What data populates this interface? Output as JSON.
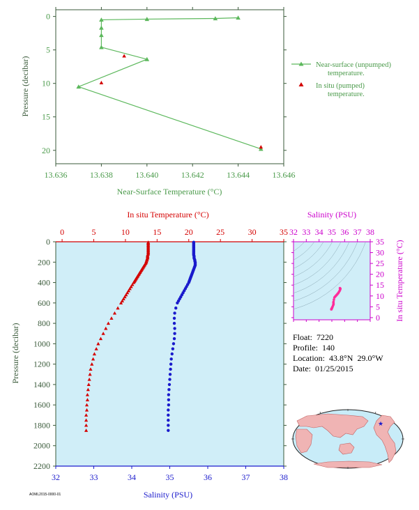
{
  "info": {
    "float": "Float:  7220",
    "profile": "Profile:  140",
    "location": "Location:  43.8°N  29.0°W",
    "date": "Date:  01/25/2015"
  },
  "footer_id": "AOML2015-0000-01",
  "chart_data": [
    {
      "type": "line",
      "title": "",
      "xlabel": "Near-Surface Temperature (°C)",
      "ylabel": "Pressure (decibar)",
      "xlim": [
        13.636,
        13.646
      ],
      "ylim": [
        22,
        -1
      ],
      "xticks": [
        "13.636",
        "13.638",
        "13.640",
        "13.642",
        "13.644",
        "13.646"
      ],
      "yticks": [
        "0",
        "5",
        "10",
        "15",
        "20"
      ],
      "color": "#5cb85c",
      "insitu_color": "#d40000",
      "legend_position": "right",
      "series": [
        {
          "name": "Near-surface (unpumped) temperature.",
          "x": [
            13.644,
            13.643,
            13.64,
            13.638,
            13.638,
            13.638,
            13.638,
            13.64,
            13.637,
            13.645
          ],
          "y": [
            0.2,
            0.3,
            0.4,
            0.5,
            1.7,
            2.8,
            4.6,
            6.4,
            10.5,
            19.8
          ]
        },
        {
          "name": "In situ (pumped) temperature.",
          "x": [
            13.639,
            13.638,
            13.645
          ],
          "y": [
            5.9,
            9.9,
            19.5
          ]
        }
      ]
    },
    {
      "type": "scatter",
      "title": "",
      "ylabel": "Pressure (decibar)",
      "ylim": [
        2200,
        0
      ],
      "yticks": [
        "0",
        "200",
        "400",
        "600",
        "800",
        "1000",
        "1200",
        "1400",
        "1600",
        "1800",
        "2000",
        "2200"
      ],
      "background": "#d0eef8",
      "temperature_axis": {
        "label": "In situ Temperature (°C)",
        "range": [
          -1,
          35
        ],
        "ticks": [
          "0",
          "5",
          "10",
          "15",
          "20",
          "25",
          "30",
          "35"
        ],
        "color": "#d40000"
      },
      "salinity_axis": {
        "label": "Salinity (PSU)",
        "range": [
          32,
          38
        ],
        "ticks": [
          "32",
          "33",
          "34",
          "35",
          "36",
          "37",
          "38"
        ],
        "color": "#1a1acc"
      },
      "temperature_profile": {
        "pressure": [
          5,
          10,
          20,
          30,
          40,
          50,
          60,
          70,
          80,
          90,
          100,
          110,
          120,
          130,
          140,
          150,
          160,
          170,
          180,
          190,
          200,
          210,
          220,
          230,
          240,
          250,
          260,
          270,
          280,
          290,
          300,
          310,
          320,
          330,
          340,
          350,
          360,
          370,
          380,
          390,
          400,
          420,
          440,
          460,
          480,
          500,
          520,
          540,
          560,
          580,
          600,
          650,
          700,
          750,
          800,
          850,
          900,
          950,
          1000,
          1050,
          1100,
          1150,
          1200,
          1250,
          1300,
          1350,
          1400,
          1450,
          1500,
          1550,
          1600,
          1650,
          1700,
          1750,
          1800,
          1850
        ],
        "temperature": [
          13.6,
          13.6,
          13.6,
          13.6,
          13.6,
          13.6,
          13.6,
          13.6,
          13.6,
          13.6,
          13.6,
          13.6,
          13.6,
          13.5,
          13.5,
          13.5,
          13.5,
          13.4,
          13.4,
          13.3,
          13.3,
          13.2,
          13.1,
          13.0,
          12.9,
          12.8,
          12.7,
          12.6,
          12.5,
          12.4,
          12.3,
          12.2,
          12.1,
          12.0,
          11.9,
          11.8,
          11.7,
          11.6,
          11.5,
          11.4,
          11.3,
          11.1,
          10.9,
          10.7,
          10.5,
          10.3,
          10.1,
          9.9,
          9.7,
          9.5,
          9.3,
          8.8,
          8.3,
          7.8,
          7.3,
          6.9,
          6.5,
          6.1,
          5.7,
          5.4,
          5.1,
          4.9,
          4.7,
          4.5,
          4.4,
          4.3,
          4.2,
          4.1,
          4.0,
          4.0,
          3.9,
          3.9,
          3.8,
          3.8,
          3.8,
          3.8
        ]
      },
      "salinity_profile": {
        "pressure": [
          5,
          10,
          20,
          30,
          40,
          50,
          60,
          70,
          80,
          90,
          100,
          110,
          120,
          130,
          140,
          150,
          160,
          170,
          180,
          190,
          200,
          210,
          220,
          230,
          240,
          250,
          260,
          270,
          280,
          290,
          300,
          310,
          320,
          330,
          340,
          350,
          360,
          370,
          380,
          390,
          400,
          420,
          440,
          460,
          480,
          500,
          520,
          540,
          560,
          580,
          600,
          650,
          700,
          750,
          800,
          850,
          900,
          950,
          1000,
          1050,
          1100,
          1150,
          1200,
          1250,
          1300,
          1350,
          1400,
          1450,
          1500,
          1550,
          1600,
          1650,
          1700,
          1750,
          1800,
          1850
        ],
        "salinity": [
          35.63,
          35.63,
          35.63,
          35.63,
          35.63,
          35.63,
          35.63,
          35.63,
          35.63,
          35.63,
          35.63,
          35.63,
          35.63,
          35.63,
          35.64,
          35.64,
          35.64,
          35.65,
          35.66,
          35.66,
          35.67,
          35.67,
          35.67,
          35.67,
          35.66,
          35.65,
          35.64,
          35.63,
          35.62,
          35.61,
          35.6,
          35.59,
          35.58,
          35.57,
          35.56,
          35.55,
          35.54,
          35.53,
          35.52,
          35.51,
          35.5,
          35.47,
          35.44,
          35.41,
          35.38,
          35.35,
          35.32,
          35.29,
          35.26,
          35.23,
          35.2,
          35.16,
          35.13,
          35.12,
          35.12,
          35.13,
          35.13,
          35.12,
          35.1,
          35.08,
          35.06,
          35.04,
          35.03,
          35.02,
          35.01,
          35.0,
          34.99,
          34.98,
          34.97,
          34.97,
          34.97,
          34.96,
          34.96,
          34.96,
          34.96,
          34.96
        ]
      }
    },
    {
      "type": "scatter",
      "title": "",
      "xlabel": "Salinity (PSU)",
      "ylabel": "In situ Temperature (°C)",
      "xlim": [
        32,
        38
      ],
      "ylim": [
        -1,
        35
      ],
      "xticks": [
        "32",
        "33",
        "34",
        "35",
        "36",
        "37",
        "38"
      ],
      "yticks": [
        "0",
        "5",
        "10",
        "15",
        "20",
        "25",
        "30",
        "35"
      ],
      "background": "#d0eef8",
      "axis_color": "#cc00cc",
      "point_color": "#ff2d9b",
      "salinity": [
        34.96,
        34.96,
        34.97,
        34.99,
        35.01,
        35.03,
        35.06,
        35.1,
        35.13,
        35.13,
        35.12,
        35.13,
        35.16,
        35.2,
        35.26,
        35.32,
        35.38,
        35.44,
        35.5,
        35.55,
        35.6,
        35.64,
        35.67,
        35.65,
        35.63
      ],
      "temperature": [
        3.8,
        3.9,
        4.0,
        4.2,
        4.4,
        4.7,
        5.1,
        5.7,
        6.1,
        6.5,
        6.9,
        7.3,
        8.3,
        9.3,
        9.7,
        10.1,
        10.5,
        10.9,
        11.3,
        11.8,
        12.3,
        12.8,
        13.3,
        13.5,
        13.6
      ]
    }
  ]
}
